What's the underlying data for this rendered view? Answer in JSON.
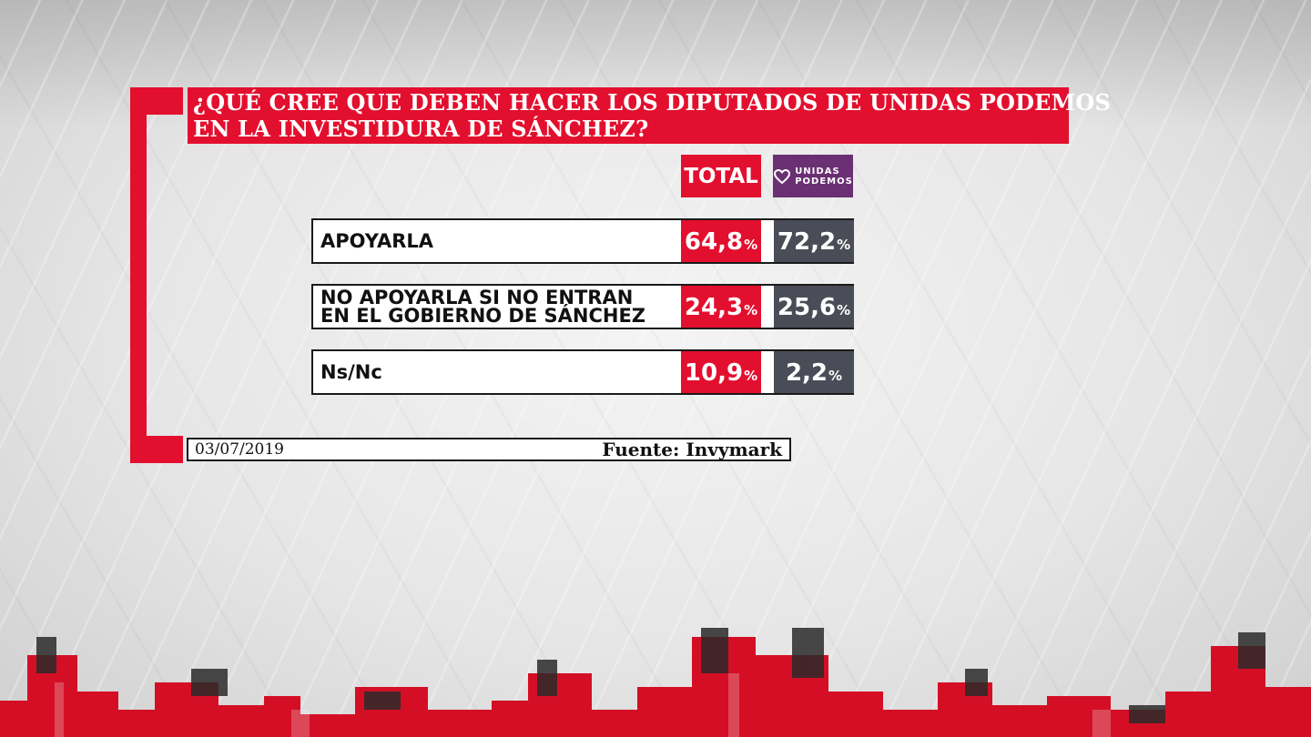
{
  "title": {
    "line1": "¿QUÉ CREE QUE DEBEN HACER LOS DIPUTADOS DE UNIDAS PODEMOS",
    "line2": "EN LA INVESTIDURA DE SÁNCHEZ?"
  },
  "columns": {
    "total_label": "TOTAL",
    "party_logo_line1": "UNIDAS",
    "party_logo_line2": "PODEMOS"
  },
  "rows": [
    {
      "label_line1": "APOYARLA",
      "label_line2": "",
      "total": "64,8",
      "party": "72,2"
    },
    {
      "label_line1": "NO APOYARLA SI NO ENTRAN",
      "label_line2": "EN EL GOBIERNO DE SÁNCHEZ",
      "total": "24,3",
      "party": "25,6"
    },
    {
      "label_line1": "Ns/Nc",
      "label_line2": "",
      "total": "10,9",
      "party": "2,2"
    }
  ],
  "percent_symbol": "%",
  "footer": {
    "date": "03/07/2019",
    "source": "Fuente: Invymark"
  },
  "colors": {
    "accent_red": "#e30f2e",
    "party_purple": "#6b2f73",
    "party_cell": "#4a4d57"
  },
  "chart_data": {
    "type": "table",
    "title": "¿QUÉ CREE QUE DEBEN HACER LOS DIPUTADOS DE UNIDAS PODEMOS EN LA INVESTIDURA DE SÁNCHEZ?",
    "columns": [
      "TOTAL",
      "UNIDAS PODEMOS"
    ],
    "categories": [
      "APOYARLA",
      "NO APOYARLA SI NO ENTRAN EN EL GOBIERNO DE SÁNCHEZ",
      "Ns/Nc"
    ],
    "series": [
      {
        "name": "TOTAL",
        "values": [
          64.8,
          24.3,
          10.9
        ]
      },
      {
        "name": "UNIDAS PODEMOS",
        "values": [
          72.2,
          25.6,
          2.2
        ]
      }
    ],
    "unit": "%"
  }
}
